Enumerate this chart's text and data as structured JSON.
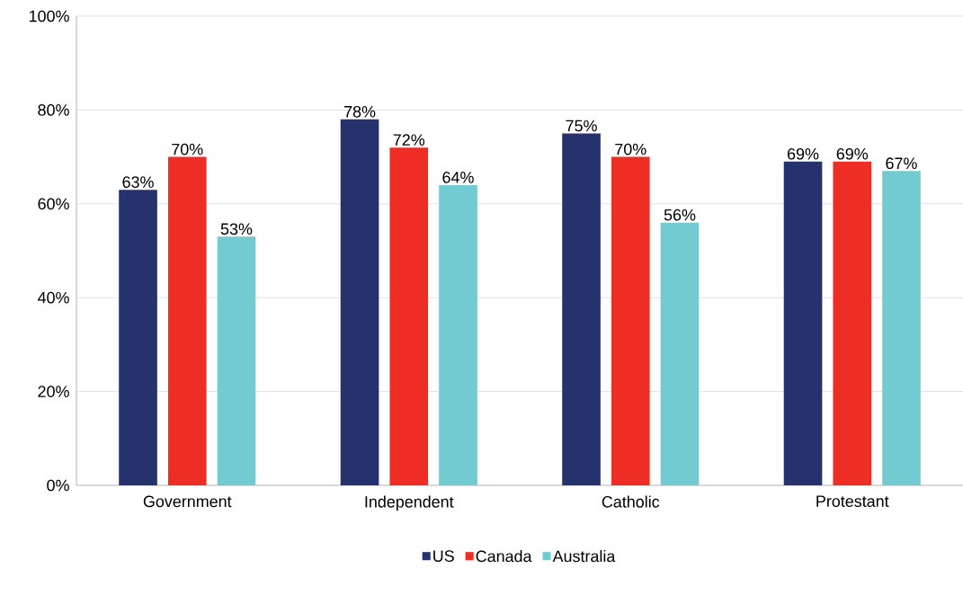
{
  "chart_data": {
    "type": "bar",
    "categories": [
      "Government",
      "Independent",
      "Catholic",
      "Protestant"
    ],
    "series": [
      {
        "name": "US",
        "color": "#26326e",
        "values": [
          63,
          78,
          75,
          69
        ],
        "value_labels": [
          "63%",
          "78%",
          "75%",
          "69%"
        ]
      },
      {
        "name": "Canada",
        "color": "#ee2d24",
        "values": [
          70,
          72,
          70,
          69
        ],
        "value_labels": [
          "70%",
          "72%",
          "70%",
          "69%"
        ]
      },
      {
        "name": "Australia",
        "color": "#72cbd0",
        "values": [
          53,
          64,
          56,
          67
        ],
        "value_labels": [
          "53%",
          "64%",
          "56%",
          "67%"
        ]
      }
    ],
    "ylim": [
      0,
      100
    ],
    "yticks": [
      {
        "value": 0,
        "label": "0%"
      },
      {
        "value": 20,
        "label": "20%"
      },
      {
        "value": 40,
        "label": "40%"
      },
      {
        "value": 60,
        "label": "60%"
      },
      {
        "value": 80,
        "label": "80%"
      },
      {
        "value": 100,
        "label": "100%"
      }
    ],
    "grid": "y",
    "legend": "bottom"
  }
}
